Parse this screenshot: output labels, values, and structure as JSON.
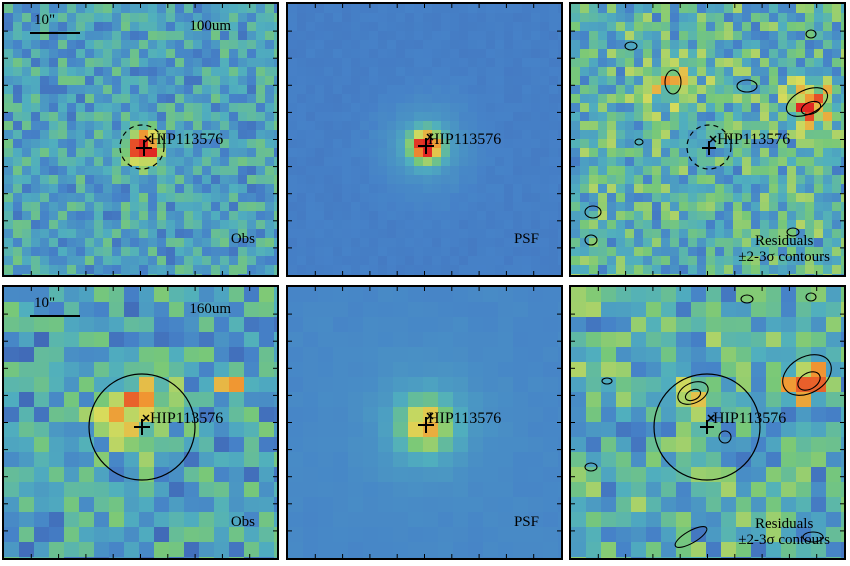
{
  "figure": {
    "target_name": "HIP113576",
    "rows": [
      {
        "band": "100um",
        "scale_bar": "10\"",
        "panels": [
          {
            "kind": "Obs",
            "seed": 11
          },
          {
            "kind": "PSF",
            "seed": 12
          },
          {
            "kind": "Residuals",
            "contours": "±2-3σ contours",
            "seed": 13
          }
        ]
      },
      {
        "band": "160um",
        "scale_bar": "10\"",
        "panels": [
          {
            "kind": "Obs",
            "seed": 21
          },
          {
            "kind": "PSF",
            "seed": 22
          },
          {
            "kind": "Residuals",
            "contours": "±2-3σ contours",
            "seed": 23
          }
        ]
      }
    ],
    "colors": {
      "background_blue": "#4a86c8",
      "psf_background": "#5a9ac9",
      "peak_red": "#e0302a",
      "frame": "#000000"
    }
  }
}
